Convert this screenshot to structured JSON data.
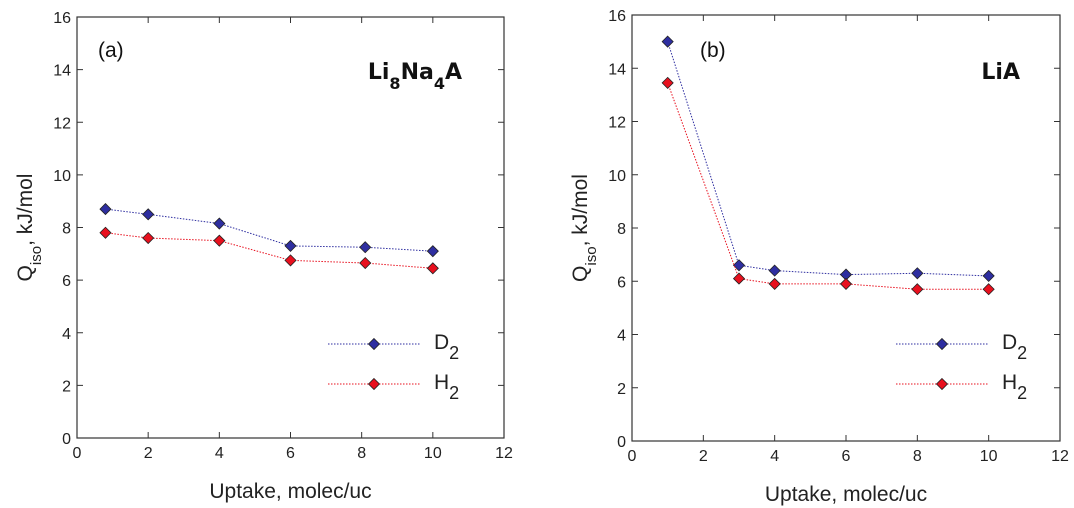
{
  "chart_data": [
    {
      "type": "line",
      "panel_label": "(a)",
      "title_parts": [
        {
          "text": "Li",
          "sub": false
        },
        {
          "text": "8",
          "sub": true
        },
        {
          "text": "Na",
          "sub": false
        },
        {
          "text": "4",
          "sub": true
        },
        {
          "text": "A",
          "sub": false
        }
      ],
      "xlabel": "Uptake, molec/uc",
      "ylabel_parts": [
        {
          "text": "Q",
          "sub": false
        },
        {
          "text": "iso",
          "sub": true
        },
        {
          "text": ", kJ/mol",
          "sub": false
        }
      ],
      "xlim": [
        0,
        12
      ],
      "ylim": [
        0,
        16
      ],
      "xticks": [
        0,
        2,
        4,
        6,
        8,
        10,
        12
      ],
      "yticks": [
        0,
        2,
        4,
        6,
        8,
        10,
        12,
        14,
        16
      ],
      "grid": false,
      "legend_position": "lower-right",
      "series": [
        {
          "name": "D2",
          "name_parts": [
            {
              "text": "D",
              "sub": false
            },
            {
              "text": "2",
              "sub": true
            }
          ],
          "color": "#2e2ea0",
          "x": [
            0.8,
            2,
            4,
            6,
            8.1,
            10
          ],
          "y": [
            8.7,
            8.5,
            8.15,
            7.3,
            7.25,
            7.1
          ]
        },
        {
          "name": "H2",
          "name_parts": [
            {
              "text": "H",
              "sub": false
            },
            {
              "text": "2",
              "sub": true
            }
          ],
          "color": "#e8101e",
          "x": [
            0.8,
            2,
            4,
            6,
            8.1,
            10
          ],
          "y": [
            7.8,
            7.6,
            7.5,
            6.75,
            6.65,
            6.45
          ]
        }
      ]
    },
    {
      "type": "line",
      "panel_label": "(b)",
      "title_parts": [
        {
          "text": "LiA",
          "sub": false
        }
      ],
      "xlabel": "Uptake, molec/uc",
      "ylabel_parts": [
        {
          "text": "Q",
          "sub": false
        },
        {
          "text": "iso",
          "sub": true
        },
        {
          "text": ", kJ/mol",
          "sub": false
        }
      ],
      "xlim": [
        0,
        12
      ],
      "ylim": [
        0,
        16
      ],
      "xticks": [
        0,
        2,
        4,
        6,
        8,
        10,
        12
      ],
      "yticks": [
        0,
        2,
        4,
        6,
        8,
        10,
        12,
        14,
        16
      ],
      "grid": false,
      "legend_position": "lower-right",
      "series": [
        {
          "name": "D2",
          "name_parts": [
            {
              "text": "D",
              "sub": false
            },
            {
              "text": "2",
              "sub": true
            }
          ],
          "color": "#2e2ea0",
          "x": [
            1,
            3,
            4,
            6,
            8,
            10
          ],
          "y": [
            15.0,
            6.6,
            6.4,
            6.25,
            6.3,
            6.2
          ]
        },
        {
          "name": "H2",
          "name_parts": [
            {
              "text": "H",
              "sub": false
            },
            {
              "text": "2",
              "sub": true
            }
          ],
          "color": "#e8101e",
          "x": [
            1,
            3,
            4,
            6,
            8,
            10
          ],
          "y": [
            13.45,
            6.1,
            5.9,
            5.9,
            5.7,
            5.7
          ]
        }
      ]
    }
  ],
  "colors": {
    "marker_edge": "#222222",
    "axis": "#333333"
  }
}
